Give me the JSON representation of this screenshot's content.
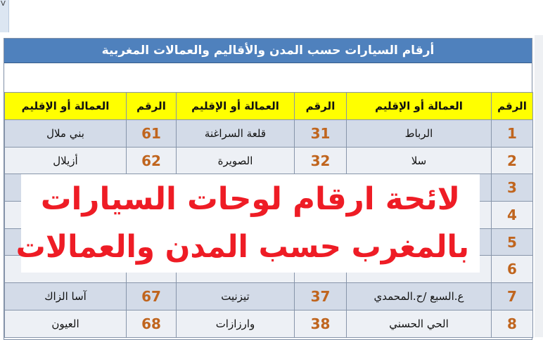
{
  "window_fragment": "V",
  "table": {
    "title": "أرقام السيارات حسب المدن والأقاليم والعمالات المغربية",
    "headers": [
      "الرقم",
      "العمالة أو الإقليم",
      "الرقم",
      "العمالة أو الإقليم",
      "الرقم",
      "العمالة أو الإقليم"
    ],
    "rows": [
      [
        "1",
        "الرباط",
        "31",
        "قلعة السراغنة",
        "61",
        "بني ملال"
      ],
      [
        "2",
        "سلا",
        "32",
        "الصويرة",
        "62",
        "أزيلال"
      ],
      [
        "3",
        "",
        "",
        "",
        "",
        ""
      ],
      [
        "4",
        "",
        "",
        "",
        "",
        ""
      ],
      [
        "5",
        "",
        "",
        "",
        "",
        ""
      ],
      [
        "6",
        "",
        "",
        "",
        "",
        ""
      ],
      [
        "7",
        "ع.السبع /ح.المحمدي",
        "37",
        "تيزنيت",
        "67",
        "آسا الزاك"
      ],
      [
        "8",
        "الحي الحسني",
        "38",
        "وارزازات",
        "68",
        "العيون"
      ]
    ]
  },
  "overlay": {
    "line1": "لائحة ارقام لوحات السيارات",
    "line2": "بالمغرب حسب المدن والعمالات"
  },
  "colors": {
    "header_bar": "#4f81bd",
    "column_header": "#ffff00",
    "number_text": "#c0651e",
    "overlay_text": "#ee1c25"
  }
}
